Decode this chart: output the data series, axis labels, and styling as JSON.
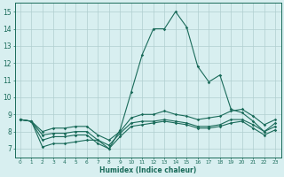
{
  "x": [
    0,
    1,
    2,
    3,
    4,
    5,
    6,
    7,
    8,
    9,
    10,
    11,
    12,
    13,
    14,
    15,
    16,
    17,
    18,
    19,
    20,
    21,
    22,
    23
  ],
  "line1": [
    8.7,
    8.6,
    7.1,
    7.3,
    7.3,
    7.4,
    7.5,
    7.5,
    7.0,
    8.1,
    10.3,
    12.5,
    14.0,
    14.0,
    15.0,
    14.1,
    11.8,
    10.9,
    11.3,
    9.3,
    9.1,
    8.6,
    8.0,
    8.5
  ],
  "line2": [
    8.7,
    8.6,
    8.0,
    8.2,
    8.2,
    8.3,
    8.3,
    7.8,
    7.5,
    8.0,
    8.8,
    9.0,
    9.0,
    9.2,
    9.0,
    8.9,
    8.7,
    8.8,
    8.9,
    9.2,
    9.3,
    8.9,
    8.4,
    8.7
  ],
  "line3": [
    8.7,
    8.6,
    7.8,
    7.9,
    7.9,
    8.0,
    8.0,
    7.5,
    7.2,
    7.9,
    8.5,
    8.6,
    8.6,
    8.7,
    8.6,
    8.5,
    8.3,
    8.3,
    8.4,
    8.7,
    8.7,
    8.4,
    8.0,
    8.3
  ],
  "line4": [
    8.7,
    8.6,
    7.5,
    7.7,
    7.7,
    7.8,
    7.8,
    7.3,
    7.0,
    7.7,
    8.3,
    8.4,
    8.5,
    8.6,
    8.5,
    8.4,
    8.2,
    8.2,
    8.3,
    8.5,
    8.6,
    8.2,
    7.8,
    8.1
  ],
  "color": "#1a6b5a",
  "bg_color": "#d8eff0",
  "grid_color": "#b0cfcf",
  "xlabel": "Humidex (Indice chaleur)",
  "ylabel_ticks": [
    7,
    8,
    9,
    10,
    11,
    12,
    13,
    14,
    15
  ],
  "ylim": [
    6.5,
    15.5
  ],
  "xlim": [
    -0.5,
    23.5
  ]
}
